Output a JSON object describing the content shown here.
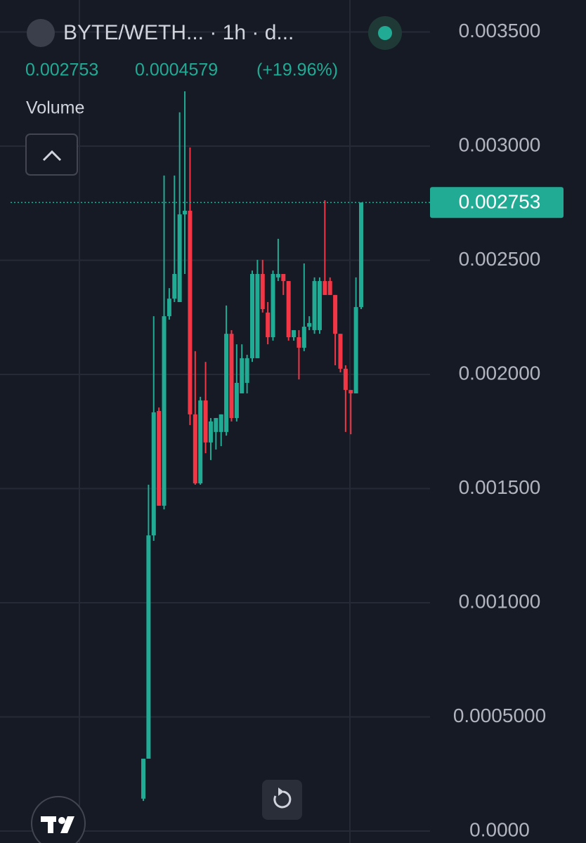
{
  "chart_data": {
    "type": "candlestick",
    "title": "BYTE/WETH... · 1h · d...",
    "price_label": "0.002753",
    "change": "0.0004579",
    "change_pct": "(+19.96%)",
    "indicator": "Volume",
    "up_color": "#22ab94",
    "down_color": "#f23645",
    "grid": true,
    "ylim": [
      -5.23e-05,
      0.00364
    ],
    "yticks": [
      {
        "value": 0.0035,
        "label": "0.003500"
      },
      {
        "value": 0.003,
        "label": "0.003000"
      },
      {
        "value": 0.0025,
        "label": "0.002500"
      },
      {
        "value": 0.002,
        "label": "0.002000"
      },
      {
        "value": 0.0015,
        "label": "0.001500"
      },
      {
        "value": 0.001,
        "label": "0.001000"
      },
      {
        "value": 0.0005,
        "label": "0.0005000"
      },
      {
        "value": 0,
        "label": "0.0000"
      }
    ],
    "open": [
      0.000142,
      0.000317,
      0.001295,
      0.00184,
      0.001425,
      0.002255,
      0.002332,
      0.002317,
      0.002701,
      0.002717,
      0.001825,
      0.001523,
      0.001886,
      0.001702,
      0.001748,
      0.001748,
      0.001748,
      0.002178,
      0.001809,
      0.001917,
      0.001963,
      0.002071,
      0.002071,
      0.00244,
      0.002271,
      0.002163,
      0.002425,
      0.00244,
      0.002409,
      0.002163,
      0.002163,
      0.002117,
      0.002209,
      0.002194,
      0.002194,
      0.002409,
      0.002409,
      0.002348,
      0.002178,
      0.002025,
      0.001932,
      0.001917,
      0.002295
    ],
    "high": [
      0.000317,
      0.001517,
      0.002255,
      0.001855,
      0.002871,
      0.002378,
      0.002871,
      0.003148,
      0.00324,
      0.002994,
      0.002102,
      0.001902,
      0.002055,
      0.001809,
      0.001809,
      0.001825,
      0.002302,
      0.002194,
      0.002132,
      0.002132,
      0.002086,
      0.002455,
      0.002502,
      0.002502,
      0.002317,
      0.002455,
      0.002594,
      0.00244,
      0.002409,
      0.002194,
      0.002194,
      0.002486,
      0.002255,
      0.002425,
      0.002425,
      0.002763,
      0.002425,
      0.002348,
      0.002178,
      0.00204,
      0.001932,
      0.002425,
      0.002753
    ],
    "low": [
      0.000132,
      0.000317,
      0.001271,
      0.001425,
      0.001409,
      0.00224,
      0.002317,
      0.002317,
      0.00244,
      0.001778,
      0.001517,
      0.001517,
      0.001655,
      0.001625,
      0.001671,
      0.001686,
      0.001732,
      0.001794,
      0.001794,
      0.001917,
      0.001917,
      0.002055,
      0.002071,
      0.002271,
      0.002132,
      0.002148,
      0.002409,
      0.002348,
      0.002148,
      0.002148,
      0.001978,
      0.002102,
      0.002194,
      0.002178,
      0.002178,
      0.002348,
      0.002348,
      0.00204,
      0.002009,
      0.001748,
      0.001738,
      0.001917,
      0.002286
    ],
    "close": [
      0.000317,
      0.001295,
      0.001834,
      0.001425,
      0.002255,
      0.002332,
      0.00244,
      0.002701,
      0.002717,
      0.001825,
      0.001523,
      0.001886,
      0.001702,
      0.001794,
      0.001809,
      0.001825,
      0.002178,
      0.001809,
      0.001963,
      0.002071,
      0.002071,
      0.00244,
      0.00244,
      0.002286,
      0.002163,
      0.00244,
      0.00244,
      0.002409,
      0.002163,
      0.002194,
      0.002117,
      0.002209,
      0.002225,
      0.002409,
      0.002409,
      0.002348,
      0.002348,
      0.002178,
      0.002025,
      0.001932,
      0.001917,
      0.002295,
      0.002753
    ]
  }
}
